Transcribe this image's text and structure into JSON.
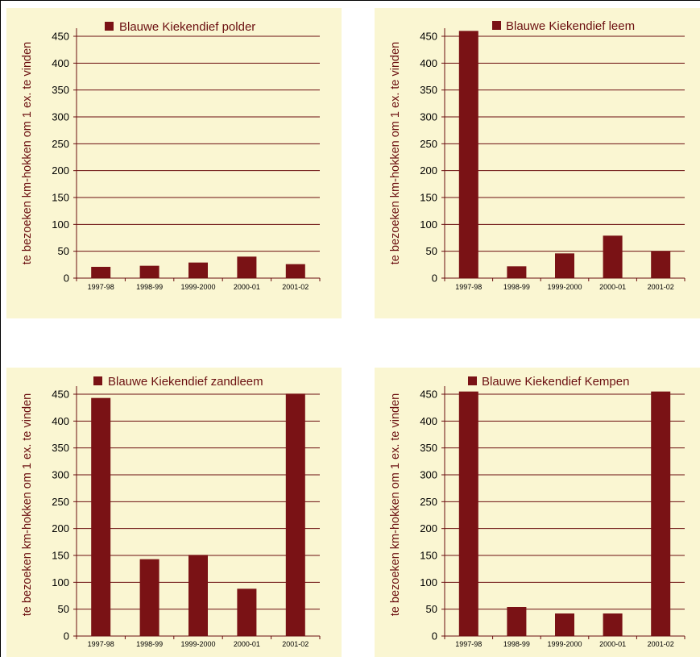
{
  "colors": {
    "bar": "#7a1215",
    "panel_bg": "#faf6d2",
    "grid": "#6b0f10",
    "text": "#6b0f10"
  },
  "chart_data": [
    {
      "type": "bar",
      "legend": "Blauwe Kiekendief polder",
      "ylabel": "te bezoeken km-hokken om 1 ex. te vinden",
      "categories": [
        "1997-98",
        "1998-99",
        "1999-2000",
        "2000-01",
        "2001-02"
      ],
      "values": [
        21,
        23,
        29,
        40,
        26
      ],
      "ylim": [
        0,
        450
      ],
      "yticks": [
        0,
        50,
        100,
        150,
        200,
        250,
        300,
        350,
        400,
        450
      ],
      "grid": true,
      "legend_position": "top"
    },
    {
      "type": "bar",
      "legend": "Blauwe Kiekendief leem",
      "ylabel": "te bezoeken km-hokken om 1 ex. te vinden",
      "categories": [
        "1997-98",
        "1998-99",
        "1999-2000",
        "2000-01",
        "2001-02"
      ],
      "values": [
        460,
        22,
        46,
        79,
        50
      ],
      "ylim": [
        0,
        450
      ],
      "yticks": [
        0,
        50,
        100,
        150,
        200,
        250,
        300,
        350,
        400,
        450
      ],
      "grid": true,
      "legend_position": "top"
    },
    {
      "type": "bar",
      "legend": "Blauwe Kiekendief zandleem",
      "ylabel": "te bezoeken km-hokken om 1 ex. te vinden",
      "categories": [
        "1997-98",
        "1998-99",
        "1999-2000",
        "2000-01",
        "2001-02"
      ],
      "values": [
        443,
        143,
        151,
        88,
        451
      ],
      "ylim": [
        0,
        450
      ],
      "yticks": [
        0,
        50,
        100,
        150,
        200,
        250,
        300,
        350,
        400,
        450
      ],
      "grid": true,
      "legend_position": "top"
    },
    {
      "type": "bar",
      "legend": "Blauwe Kiekendief Kempen",
      "ylabel": "te bezoeken km-hokken om 1 ex. te vinden",
      "categories": [
        "1997-98",
        "1998-99",
        "1999-2000",
        "2000-01",
        "2001-02"
      ],
      "values": [
        455,
        54,
        42,
        42,
        455
      ],
      "ylim": [
        0,
        450
      ],
      "yticks": [
        0,
        50,
        100,
        150,
        200,
        250,
        300,
        350,
        400,
        450
      ],
      "grid": true,
      "legend_position": "top"
    }
  ]
}
